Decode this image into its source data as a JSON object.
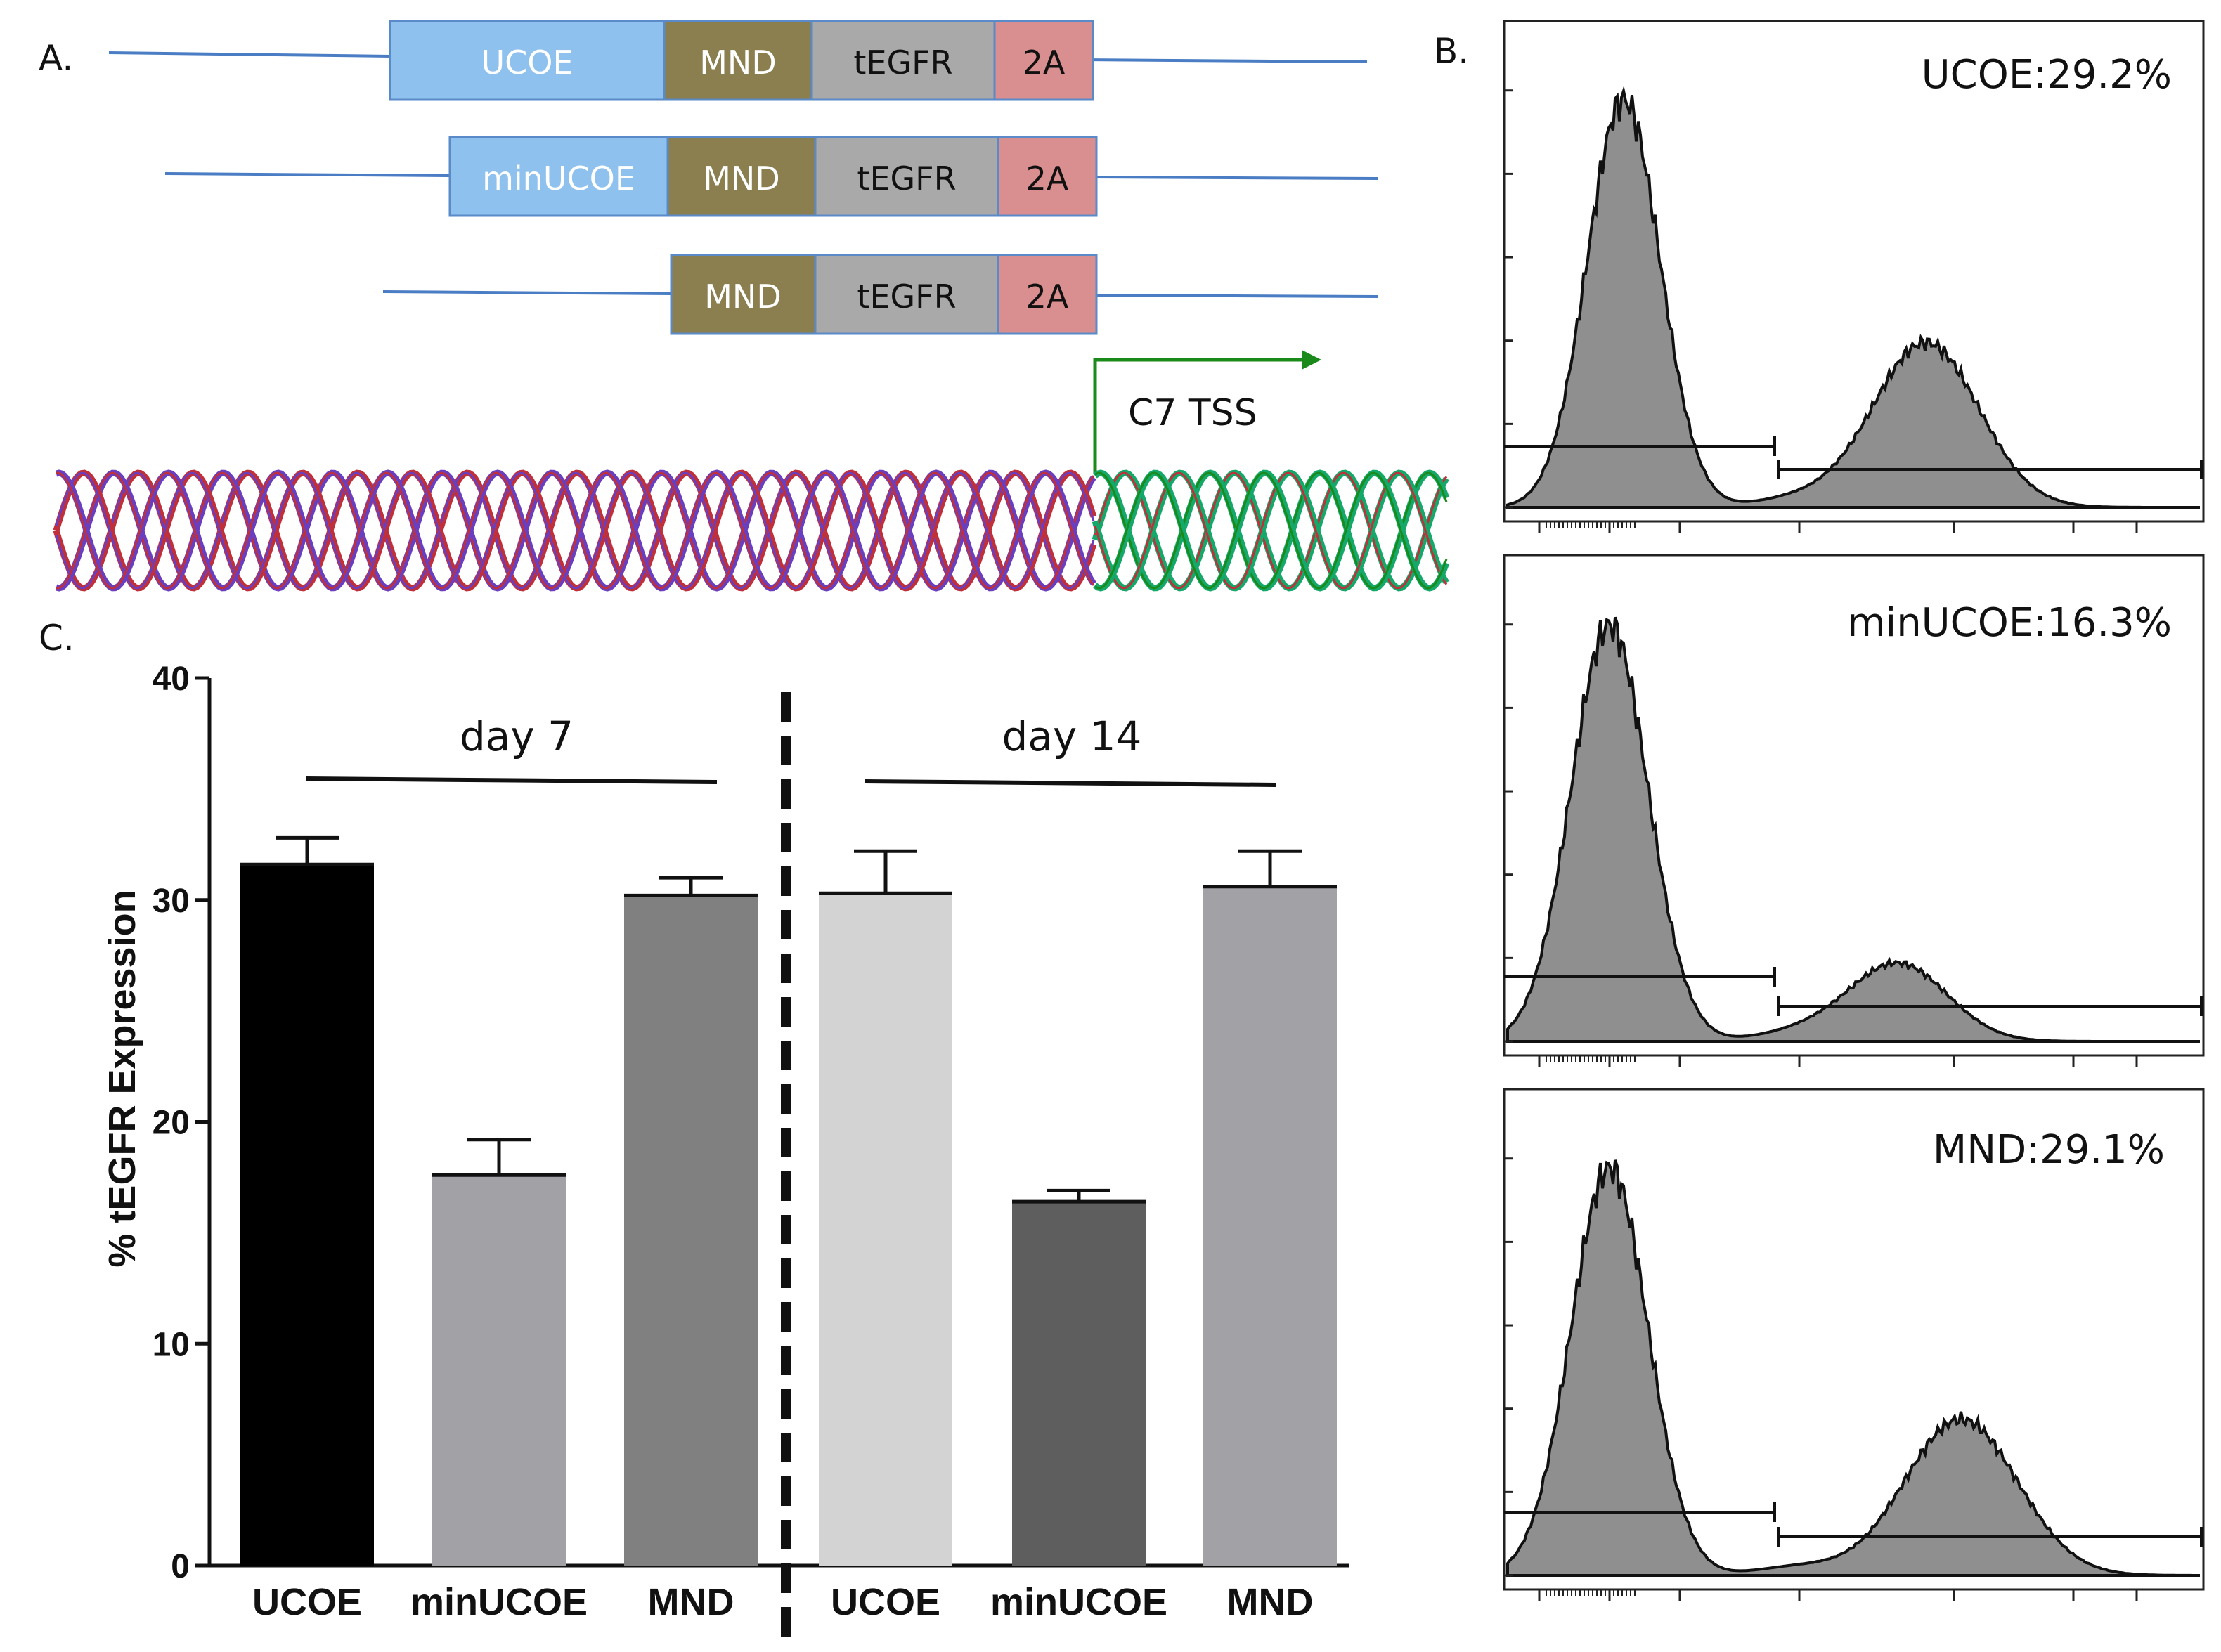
{
  "panel_labels": {
    "a": "A.",
    "b": "B.",
    "c": "C."
  },
  "constructs": [
    {
      "segments": [
        "UCOE",
        "MND",
        "tEGFR",
        "2A"
      ]
    },
    {
      "segments": [
        "minUCOE",
        "MND",
        "tEGFR",
        "2A"
      ]
    },
    {
      "segments": [
        "MND",
        "tEGFR",
        "2A"
      ]
    }
  ],
  "segment_colors": {
    "UCOE": "#8fc1ee",
    "minUCOE": "#8fc1ee",
    "MND": "#8b7f4f",
    "tEGFR": "#a9a9a9",
    "2A": "#d98f8f"
  },
  "colors": {
    "vector_line": "#4a7dc4",
    "tss_arrow": "#1a8a1a",
    "dna_strand_1": "#c0303a",
    "dna_strand_2": "#6a3fbf",
    "dna_promoter": "#14a86a",
    "histogram_fill": "#8f8f8f"
  },
  "tss_label": "C7 TSS",
  "flow_panels": [
    {
      "label": "UCOE:29.2%",
      "value": 29.2
    },
    {
      "label": "minUCOE:16.3%",
      "value": 16.3
    },
    {
      "label": "MND:29.1%",
      "value": 29.1
    }
  ],
  "chart_data": {
    "type": "bar",
    "ylabel": "% tEGFR Expression",
    "ylim": [
      0,
      40
    ],
    "yticks": [
      0,
      10,
      20,
      30,
      40
    ],
    "groups": [
      {
        "label": "day 7",
        "bars": [
          {
            "category": "UCOE",
            "value": 31.6,
            "error": 1.2,
            "color": "#000000"
          },
          {
            "category": "minUCOE",
            "value": 17.6,
            "error": 1.6,
            "color": "#a2a1a6"
          },
          {
            "category": "MND",
            "value": 30.2,
            "error": 0.8,
            "color": "#808080"
          }
        ]
      },
      {
        "label": "day 14",
        "bars": [
          {
            "category": "UCOE",
            "value": 30.3,
            "error": 1.9,
            "color": "#d3d3d3"
          },
          {
            "category": "minUCOE",
            "value": 16.4,
            "error": 0.5,
            "color": "#5e5e5e"
          },
          {
            "category": "MND",
            "value": 30.6,
            "error": 1.6,
            "color": "#a2a1a6"
          }
        ]
      }
    ]
  }
}
